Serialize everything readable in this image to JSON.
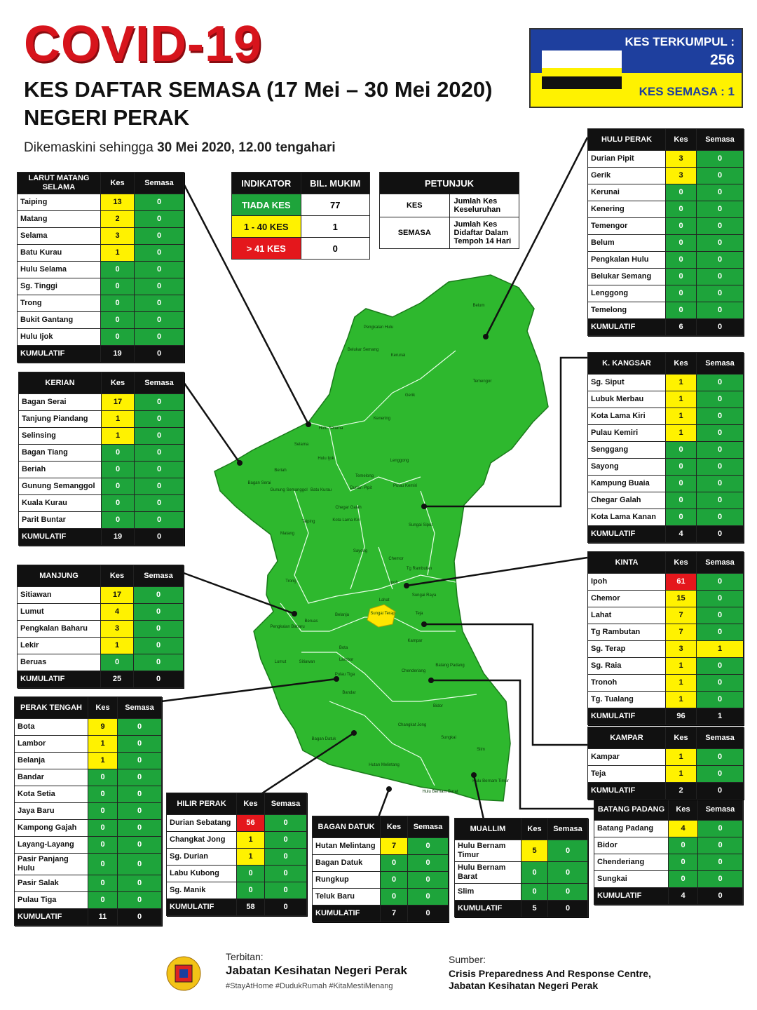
{
  "header": {
    "title": "COVID-19",
    "subtitle": "KES DAFTAR SEMASA (17 Mei – 30 Mei 2020)",
    "region": "NEGERI PERAK",
    "updated_prefix": "Dikemaskini sehingga",
    "updated_date": "30 Mei 2020, 12.00 tengahari"
  },
  "summary": {
    "total_label": "KES TERKUMPUL :",
    "total": 256,
    "active_label": "KES SEMASA :",
    "active": 1
  },
  "colors": [
    "#1ea43b",
    "#fff200",
    "#e4171c"
  ],
  "indicator": {
    "headers": [
      "INDIKATOR",
      "BIL. MUKIM"
    ],
    "rows": [
      [
        "TIADA KES",
        77
      ],
      [
        "1 - 40 KES",
        1
      ],
      [
        "> 41 KES",
        0
      ]
    ]
  },
  "legend": {
    "title": "PETUNJUK",
    "rows": [
      [
        "KES",
        "Jumlah Kes Keseluruhan"
      ],
      [
        "SEMASA",
        "Jumlah Kes Didaftar Dalam Tempoh 14 Hari"
      ]
    ]
  },
  "columns": [
    "Kes",
    "Semasa"
  ],
  "total_label": "KUMULATIF",
  "districts": [
    {
      "name": "LARUT MATANG SELAMA",
      "rows": [
        [
          "Taiping",
          13,
          0
        ],
        [
          "Matang",
          2,
          0
        ],
        [
          "Selama",
          3,
          0
        ],
        [
          "Batu Kurau",
          1,
          0
        ],
        [
          "Hulu Selama",
          0,
          0
        ],
        [
          "Sg. Tinggi",
          0,
          0
        ],
        [
          "Trong",
          0,
          0
        ],
        [
          "Bukit Gantang",
          0,
          0
        ],
        [
          "Hulu Ijok",
          0,
          0
        ]
      ],
      "total": [
        19,
        0
      ]
    },
    {
      "name": "KERIAN",
      "rows": [
        [
          "Bagan Serai",
          17,
          0
        ],
        [
          "Tanjung Piandang",
          1,
          0
        ],
        [
          "Selinsing",
          1,
          0
        ],
        [
          "Bagan Tiang",
          0,
          0
        ],
        [
          "Beriah",
          0,
          0
        ],
        [
          "Gunung Semanggol",
          0,
          0
        ],
        [
          "Kuala Kurau",
          0,
          0
        ],
        [
          "Parit Buntar",
          0,
          0
        ]
      ],
      "total": [
        19,
        0
      ]
    },
    {
      "name": "MANJUNG",
      "rows": [
        [
          "Sitiawan",
          17,
          0
        ],
        [
          "Lumut",
          4,
          0
        ],
        [
          "Pengkalan Baharu",
          3,
          0
        ],
        [
          "Lekir",
          1,
          0
        ],
        [
          "Beruas",
          0,
          0
        ]
      ],
      "total": [
        25,
        0
      ]
    },
    {
      "name": "PERAK TENGAH",
      "rows": [
        [
          "Bota",
          9,
          0
        ],
        [
          "Lambor",
          1,
          0
        ],
        [
          "Belanja",
          1,
          0
        ],
        [
          "Bandar",
          0,
          0
        ],
        [
          "Kota Setia",
          0,
          0
        ],
        [
          "Jaya Baru",
          0,
          0
        ],
        [
          "Kampong Gajah",
          0,
          0
        ],
        [
          "Layang-Layang",
          0,
          0
        ],
        [
          "Pasir Panjang Hulu",
          0,
          0
        ],
        [
          "Pasir Salak",
          0,
          0
        ],
        [
          "Pulau Tiga",
          0,
          0
        ]
      ],
      "total": [
        11,
        0
      ]
    },
    {
      "name": "HILIR PERAK",
      "rows": [
        [
          "Durian Sebatang",
          56,
          0
        ],
        [
          "Changkat Jong",
          1,
          0
        ],
        [
          "Sg. Durian",
          1,
          0
        ],
        [
          "Labu Kubong",
          0,
          0
        ],
        [
          "Sg. Manik",
          0,
          0
        ]
      ],
      "total": [
        58,
        0
      ]
    },
    {
      "name": "BAGAN DATUK",
      "rows": [
        [
          "Hutan Melintang",
          7,
          0
        ],
        [
          "Bagan Datuk",
          0,
          0
        ],
        [
          "Rungkup",
          0,
          0
        ],
        [
          "Teluk Baru",
          0,
          0
        ]
      ],
      "total": [
        7,
        0
      ]
    },
    {
      "name": "MUALLIM",
      "rows": [
        [
          "Hulu Bernam Timur",
          5,
          0
        ],
        [
          "Hulu Bernam Barat",
          0,
          0
        ],
        [
          "Slim",
          0,
          0
        ]
      ],
      "total": [
        5,
        0
      ]
    },
    {
      "name": "BATANG PADANG",
      "rows": [
        [
          "Batang Padang",
          4,
          0
        ],
        [
          "Bidor",
          0,
          0
        ],
        [
          "Chenderiang",
          0,
          0
        ],
        [
          "Sungkai",
          0,
          0
        ]
      ],
      "total": [
        4,
        0
      ]
    },
    {
      "name": "KAMPAR",
      "rows": [
        [
          "Kampar",
          1,
          0
        ],
        [
          "Teja",
          1,
          0
        ]
      ],
      "total": [
        2,
        0
      ]
    },
    {
      "name": "KINTA",
      "rows": [
        [
          "Ipoh",
          61,
          0
        ],
        [
          "Chemor",
          15,
          0
        ],
        [
          "Lahat",
          7,
          0
        ],
        [
          "Tg Rambutan",
          7,
          0
        ],
        [
          "Sg. Terap",
          3,
          1
        ],
        [
          "Sg. Raia",
          1,
          0
        ],
        [
          "Tronoh",
          1,
          0
        ],
        [
          "Tg. Tualang",
          1,
          0
        ]
      ],
      "total": [
        96,
        1
      ]
    },
    {
      "name": "K. KANGSAR",
      "rows": [
        [
          "Sg. Siput",
          1,
          0
        ],
        [
          "Lubuk Merbau",
          1,
          0
        ],
        [
          "Kota Lama Kiri",
          1,
          0
        ],
        [
          "Pulau Kemiri",
          1,
          0
        ],
        [
          "Senggang",
          0,
          0
        ],
        [
          "Sayong",
          0,
          0
        ],
        [
          "Kampung Buaia",
          0,
          0
        ],
        [
          "Chegar Galah",
          0,
          0
        ],
        [
          "Kota Lama Kanan",
          0,
          0
        ]
      ],
      "total": [
        4,
        0
      ]
    },
    {
      "name": "HULU PERAK",
      "rows": [
        [
          "Durian Pipit",
          3,
          0
        ],
        [
          "Gerik",
          3,
          0
        ],
        [
          "Kerunai",
          0,
          0
        ],
        [
          "Kenering",
          0,
          0
        ],
        [
          "Temengor",
          0,
          0
        ],
        [
          "Belum",
          0,
          0
        ],
        [
          "Pengkalan Hulu",
          0,
          0
        ],
        [
          "Belukar Semang",
          0,
          0
        ],
        [
          "Lenggong",
          0,
          0
        ],
        [
          "Temelong",
          0,
          0
        ]
      ],
      "total": [
        6,
        0
      ]
    }
  ],
  "map_labels": [
    "Belum",
    "Pengkalan Hulu",
    "Belukar Semang",
    "Kerunai",
    "Temengor",
    "Gerik",
    "Kenering",
    "Hulu Selama",
    "Selama",
    "Hulu Ijok",
    "Lenggong",
    "Batu Kurau",
    "Temelong",
    "Durian Pipit",
    "Pulau Kemiri",
    "Bagan Serai",
    "Beriah",
    "Gunung Semanggol",
    "Sungai Siput",
    "Taiping",
    "Chegar Galah",
    "Kota Lama Kiri",
    "Sayong",
    "Matang",
    "Trong",
    "Chemor",
    "Tg Rambutan",
    "Ipoh",
    "Sungai Raya",
    "Lahat",
    "Sungai Terap",
    "Teja",
    "Pengkalan Baharu",
    "Beruas",
    "Belanja",
    "Kampar",
    "Sitiawan",
    "Lumut",
    "Bota",
    "Lambor",
    "Chenderiang",
    "Batang Padang",
    "Bidor",
    "Pulau Tiga",
    "Bandar",
    "Changkat Jong",
    "Sungkai",
    "Slim",
    "Hutan Melintang",
    "Bagan Datuk",
    "Hulu Bernam Timur",
    "Hulu Bernam Barat"
  ],
  "footer": {
    "publisher_label": "Terbitan:",
    "publisher": "Jabatan Kesihatan Negeri Perak",
    "hashtags": "#StayAtHome #DudukRumah #KitaMestiMenang",
    "source_label": "Sumber:",
    "source": "Crisis Preparedness And Response Centre, Jabatan Kesihatan Negeri Perak"
  }
}
